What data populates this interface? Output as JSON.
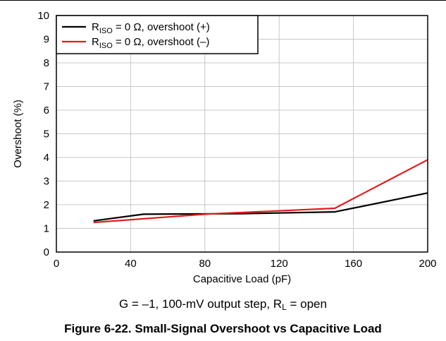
{
  "chart_data": {
    "type": "line",
    "title": "",
    "xlabel": "Capacitive Load (pF)",
    "ylabel": "Overshoot (%)",
    "xlim": [
      0,
      200
    ],
    "ylim": [
      0,
      10
    ],
    "x_ticks": [
      0,
      40,
      80,
      120,
      160,
      200
    ],
    "y_ticks": [
      0,
      1,
      2,
      3,
      4,
      5,
      6,
      7,
      8,
      9,
      10
    ],
    "grid": true,
    "legend_position": "top-left",
    "series": [
      {
        "name_main": "R",
        "name_sub": "ISO",
        "name_rest": " = 0 Ω, overshoot (+)",
        "color": "#000000",
        "x": [
          20,
          47,
          100,
          150,
          200
        ],
        "y": [
          1.32,
          1.6,
          1.62,
          1.7,
          2.5
        ]
      },
      {
        "name_main": "R",
        "name_sub": "ISO",
        "name_rest": " = 0 Ω, overshoot (–)",
        "color": "#e31a1c",
        "x": [
          20,
          80,
          150,
          200
        ],
        "y": [
          1.25,
          1.6,
          1.85,
          3.9
        ]
      }
    ]
  },
  "conditions": {
    "prefix": "G = –1, 100-mV output step, R",
    "sub": "L",
    "suffix": " = open"
  },
  "caption": "Figure 6-22. Small-Signal Overshoot vs Capacitive Load"
}
